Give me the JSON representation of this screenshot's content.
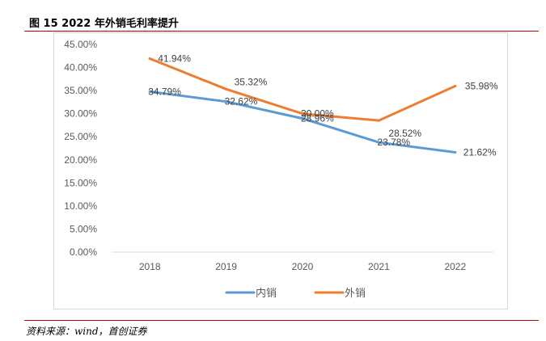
{
  "title": "图 15 2022 年外销毛利率提升",
  "source": "资料来源：wind，首创证券",
  "chart_data": {
    "type": "line",
    "title": "",
    "xlabel": "",
    "ylabel": "",
    "categories": [
      "2018",
      "2019",
      "2020",
      "2021",
      "2022"
    ],
    "ylim": [
      0,
      45
    ],
    "yticks": [
      "0.00%",
      "5.00%",
      "10.00%",
      "15.00%",
      "20.00%",
      "25.00%",
      "30.00%",
      "35.00%",
      "40.00%",
      "45.00%"
    ],
    "grid": false,
    "legend_position": "bottom",
    "series": [
      {
        "name": "内销",
        "color": "#5b9bd5",
        "values": [
          34.79,
          32.62,
          28.96,
          23.78,
          21.62
        ],
        "labels": [
          "34.79%",
          "32.62%",
          "28.96%",
          "23.78%",
          "21.62%"
        ]
      },
      {
        "name": "外销",
        "color": "#ed7d31",
        "values": [
          41.94,
          35.32,
          30.0,
          28.52,
          35.98
        ],
        "labels": [
          "41.94%",
          "35.32%",
          "30.00%",
          "28.52%",
          "35.98%"
        ]
      }
    ]
  }
}
